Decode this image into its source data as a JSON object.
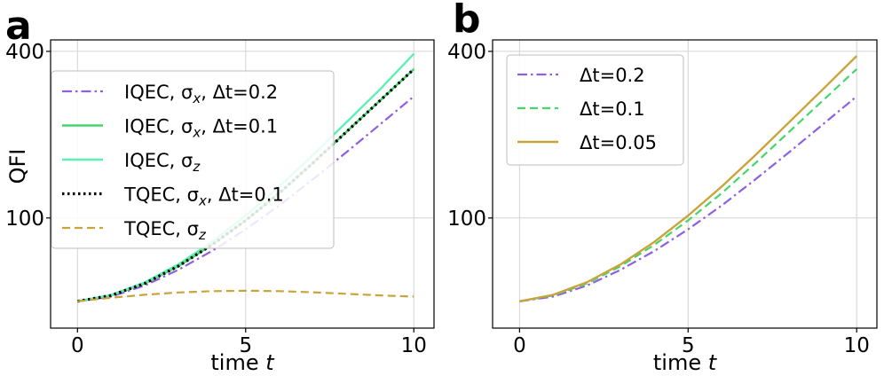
{
  "chart_data": [
    {
      "panel": "a",
      "type": "line",
      "xlabel": "time t",
      "ylabel": "QFI",
      "yscale": "log",
      "xlim": [
        -0.8,
        10.6
      ],
      "ylim": [
        40,
        440
      ],
      "xticks": [
        0,
        5,
        10
      ],
      "xtick_labels": [
        "0",
        "5",
        "10"
      ],
      "yticks": [
        100,
        400
      ],
      "ytick_labels": [
        "100",
        "400"
      ],
      "grid": true,
      "legend_position": "upper-left",
      "series": [
        {
          "name": "IQEC, σx, Δt=0.2",
          "label_text": "IQEC, σ",
          "sub": "x",
          "suffix": ", Δt=0.2",
          "color": "#8f5fe0",
          "style": "dashdot",
          "x": [
            0,
            1,
            2,
            3,
            4,
            5,
            6,
            7,
            8,
            9,
            10
          ],
          "y": [
            50,
            52,
            57,
            65,
            76,
            91,
            111,
            138,
            173,
            218,
            275
          ]
        },
        {
          "name": "IQEC, σx, Δt=0.1",
          "label_text": "IQEC, σ",
          "sub": "x",
          "suffix": ", Δt=0.1",
          "color": "#44d66a",
          "style": "solid",
          "x": [
            0,
            1,
            2,
            3,
            4,
            5,
            6,
            7,
            8,
            9,
            10
          ],
          "y": [
            50,
            52.5,
            58,
            67,
            80,
            98,
            123,
            158,
            205,
            266,
            345
          ]
        },
        {
          "name": "IQEC, σz",
          "label_text": "IQEC, σ",
          "sub": "z",
          "suffix": "",
          "color": "#5cf0b4",
          "style": "solid",
          "x": [
            0,
            1,
            2,
            3,
            4,
            5,
            6,
            7,
            8,
            9,
            10
          ],
          "y": [
            50,
            52.7,
            58.5,
            68,
            82,
            102,
            130,
            169,
            222,
            292,
            392
          ]
        },
        {
          "name": "TQEC, σx, Δt=0.1",
          "label_text": "TQEC, σ",
          "sub": "x",
          "suffix": ", Δt=0.1",
          "color": "#000000",
          "style": "dotted",
          "x": [
            0,
            1,
            2,
            3,
            4,
            5,
            6,
            7,
            8,
            9,
            10
          ],
          "y": [
            50,
            52.5,
            58,
            67,
            80,
            98,
            123,
            158,
            205,
            266,
            345
          ]
        },
        {
          "name": "TQEC, σz",
          "label_text": "TQEC, σ",
          "sub": "z",
          "suffix": "",
          "color": "#c9a43a",
          "style": "dashed",
          "x": [
            0,
            1,
            2,
            3,
            4,
            5,
            6,
            7,
            8,
            9,
            10
          ],
          "y": [
            50,
            51.5,
            52.8,
            53.8,
            54.4,
            54.6,
            54.4,
            53.9,
            53.2,
            52.5,
            52
          ]
        }
      ]
    },
    {
      "panel": "b",
      "type": "line",
      "xlabel": "time t",
      "ylabel": "",
      "yscale": "log",
      "xlim": [
        -0.8,
        10.6
      ],
      "ylim": [
        40,
        440
      ],
      "xticks": [
        0,
        5,
        10
      ],
      "xtick_labels": [
        "0",
        "5",
        "10"
      ],
      "yticks": [
        100,
        400
      ],
      "ytick_labels": [
        "100",
        "400"
      ],
      "grid": true,
      "legend_position": "upper-left",
      "series": [
        {
          "name": "Δt=0.2",
          "label_text": "Δt=0.2",
          "color": "#8f5fe0",
          "style": "dashdot",
          "x": [
            0,
            1,
            2,
            3,
            4,
            5,
            6,
            7,
            8,
            9,
            10
          ],
          "y": [
            50,
            52,
            57,
            65,
            76,
            91,
            111,
            138,
            173,
            218,
            275
          ]
        },
        {
          "name": "Δt=0.1",
          "label_text": "Δt=0.1",
          "color": "#44d66a",
          "style": "dashed",
          "x": [
            0,
            1,
            2,
            3,
            4,
            5,
            6,
            7,
            8,
            9,
            10
          ],
          "y": [
            50,
            52.5,
            58,
            67,
            80,
            98,
            123,
            158,
            205,
            266,
            345
          ]
        },
        {
          "name": "Δt=0.05",
          "label_text": "Δt=0.05",
          "color": "#c9a43a",
          "style": "solid",
          "x": [
            0,
            1,
            2,
            3,
            4,
            5,
            6,
            7,
            8,
            9,
            10
          ],
          "y": [
            50,
            52.8,
            58.6,
            68,
            82,
            102,
            130,
            169,
            222,
            292,
            385
          ]
        }
      ]
    }
  ]
}
